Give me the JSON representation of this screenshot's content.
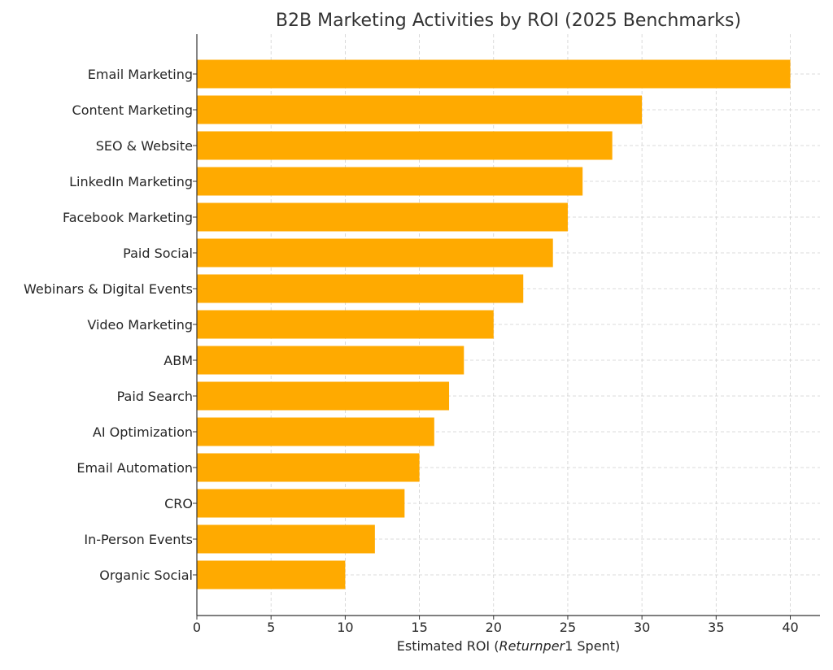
{
  "chart_data": {
    "type": "bar",
    "orientation": "horizontal",
    "title": "B2B Marketing Activities by ROI (2025 Benchmarks)",
    "xlabel_parts": [
      "Estimated ROI (",
      "Returnper",
      "1 Spent)"
    ],
    "ylabel": "",
    "categories": [
      "Email Marketing",
      "Content Marketing",
      "SEO & Website",
      "LinkedIn Marketing",
      "Facebook Marketing",
      "Paid Social",
      "Webinars & Digital Events",
      "Video Marketing",
      "ABM",
      "Paid Search",
      "AI Optimization",
      "Email Automation",
      "CRO",
      "In-Person Events",
      "Organic Social"
    ],
    "values": [
      40,
      30,
      28,
      26,
      25,
      24,
      22,
      20,
      18,
      17,
      16,
      15,
      14,
      12,
      10
    ],
    "xlim": [
      0,
      42
    ],
    "xticks": [
      0,
      5,
      10,
      15,
      20,
      25,
      30,
      35,
      40
    ],
    "bar_color": "#FFAA00",
    "grid": true
  }
}
